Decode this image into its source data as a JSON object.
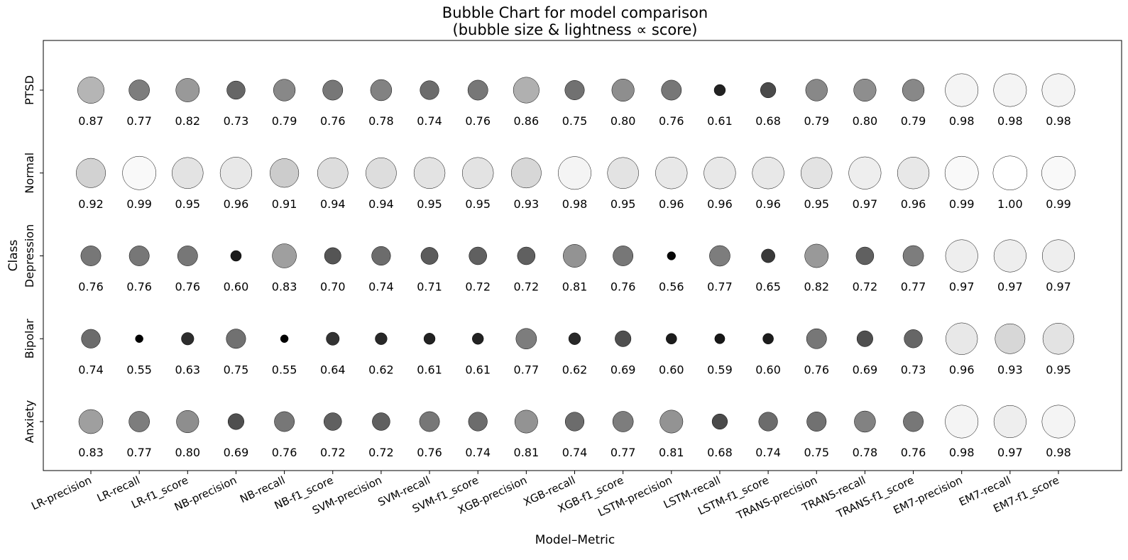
{
  "chart_data": {
    "type": "scatter",
    "title": "Bubble Chart for model comparison",
    "subtitle": "(bubble size & lightness ∝ score)",
    "xlabel": "Model–Metric",
    "ylabel": "Class",
    "categories": [
      "LR-precision",
      "LR-recall",
      "LR-f1_score",
      "NB-precision",
      "NB-recall",
      "NB-f1_score",
      "SVM-precision",
      "SVM-recall",
      "SVM-f1_score",
      "XGB-precision",
      "XGB-recall",
      "XGB-f1_score",
      "LSTM-precision",
      "LSTM-recall",
      "LSTM-f1_score",
      "TRANS-precision",
      "TRANS-recall",
      "TRANS-f1_score",
      "EM7-precision",
      "EM7-recall",
      "EM7-f1_score"
    ],
    "classes": [
      "PTSD",
      "Normal",
      "Depression",
      "Bipolar",
      "Anxiety"
    ],
    "values": [
      [
        0.87,
        0.77,
        0.82,
        0.73,
        0.79,
        0.76,
        0.78,
        0.74,
        0.76,
        0.86,
        0.75,
        0.8,
        0.76,
        0.61,
        0.68,
        0.79,
        0.8,
        0.79,
        0.98,
        0.98,
        0.98
      ],
      [
        0.92,
        0.99,
        0.95,
        0.96,
        0.91,
        0.94,
        0.94,
        0.95,
        0.95,
        0.93,
        0.98,
        0.95,
        0.96,
        0.96,
        0.96,
        0.95,
        0.97,
        0.96,
        0.99,
        1.0,
        0.99
      ],
      [
        0.76,
        0.76,
        0.76,
        0.6,
        0.83,
        0.7,
        0.74,
        0.71,
        0.72,
        0.72,
        0.81,
        0.76,
        0.56,
        0.77,
        0.65,
        0.82,
        0.72,
        0.77,
        0.97,
        0.97,
        0.97
      ],
      [
        0.74,
        0.55,
        0.63,
        0.75,
        0.55,
        0.64,
        0.62,
        0.61,
        0.61,
        0.77,
        0.62,
        0.69,
        0.6,
        0.59,
        0.6,
        0.76,
        0.69,
        0.73,
        0.96,
        0.93,
        0.95
      ],
      [
        0.83,
        0.77,
        0.8,
        0.69,
        0.76,
        0.72,
        0.72,
        0.76,
        0.74,
        0.81,
        0.74,
        0.77,
        0.81,
        0.68,
        0.74,
        0.75,
        0.78,
        0.76,
        0.98,
        0.97,
        0.98
      ]
    ],
    "value_format_decimals": 2,
    "encoding": {
      "size": "score",
      "lightness": "score",
      "colormap": "gray",
      "edge_color": "#000000"
    },
    "legend": "none",
    "grid": false
  }
}
